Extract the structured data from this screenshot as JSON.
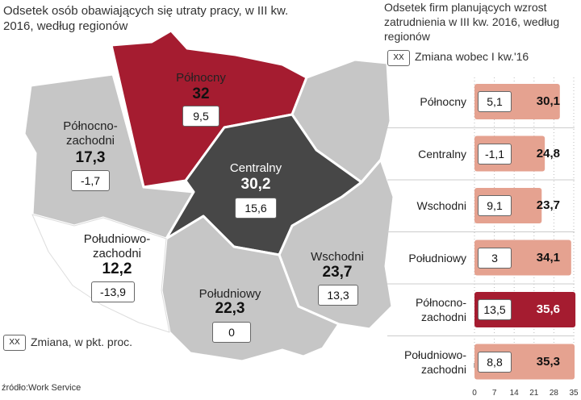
{
  "left_title": "Odsetek osób obawiających się utraty pracy, w III kw. 2016, według regionów",
  "right_title": "Odsetek firm planujących wzrost zatrudnienia w III kw. 2016, według regionów",
  "right_legend": {
    "box": "XX",
    "text": "Zmiana  wobec I kw.'16"
  },
  "left_legend": {
    "box": "XX",
    "text": "Zmiana, w  pkt. proc."
  },
  "source": "źródło:Work Service",
  "colors": {
    "highlight": "#a51c30",
    "dark": "#474747",
    "light": "#c6c6c6",
    "white": "#ffffff",
    "bar": "#e5a290",
    "bar_highlight": "#a51c30"
  },
  "map_regions": [
    {
      "id": "polnocny",
      "name_lines": [
        "Północny"
      ],
      "value": "32",
      "change": "9,5"
    },
    {
      "id": "polnocno-zachodni",
      "name_lines": [
        "Północno-",
        "zachodni"
      ],
      "value": "17,3",
      "change": "-1,7"
    },
    {
      "id": "centralny",
      "name_lines": [
        "Centralny"
      ],
      "value": "30,2",
      "change": "15,6"
    },
    {
      "id": "poludniowo-zachodni",
      "name_lines": [
        "Południowo-",
        "zachodni"
      ],
      "value": "12,2",
      "change": "-13,9"
    },
    {
      "id": "wschodni",
      "name_lines": [
        "Wschodni"
      ],
      "value": "23,7",
      "change": "13,3"
    },
    {
      "id": "poludniowy",
      "name_lines": [
        "Południowy"
      ],
      "value": "22,3",
      "change": "0"
    }
  ],
  "chart_data": {
    "type": "bar",
    "orientation": "horizontal",
    "title": "Odsetek firm planujących wzrost zatrudnienia w III kw. 2016, według regionów",
    "categories": [
      [
        "Północny"
      ],
      [
        "Centralny"
      ],
      [
        "Wschodni"
      ],
      [
        "Południowy"
      ],
      [
        "Północno-",
        "zachodni"
      ],
      [
        "Południowo-",
        "zachodni"
      ]
    ],
    "values": [
      30.1,
      24.8,
      23.7,
      34.1,
      35.6,
      35.3
    ],
    "value_labels": [
      "30,1",
      "24,8",
      "23,7",
      "34,1",
      "35,6",
      "35,3"
    ],
    "change_labels": [
      "5,1",
      "-1,1",
      "9,1",
      "3",
      "13,5",
      "8,8"
    ],
    "highlight_index": 4,
    "xlim": [
      0,
      35
    ],
    "xticks": [
      0,
      7,
      14,
      21,
      28,
      35
    ]
  }
}
